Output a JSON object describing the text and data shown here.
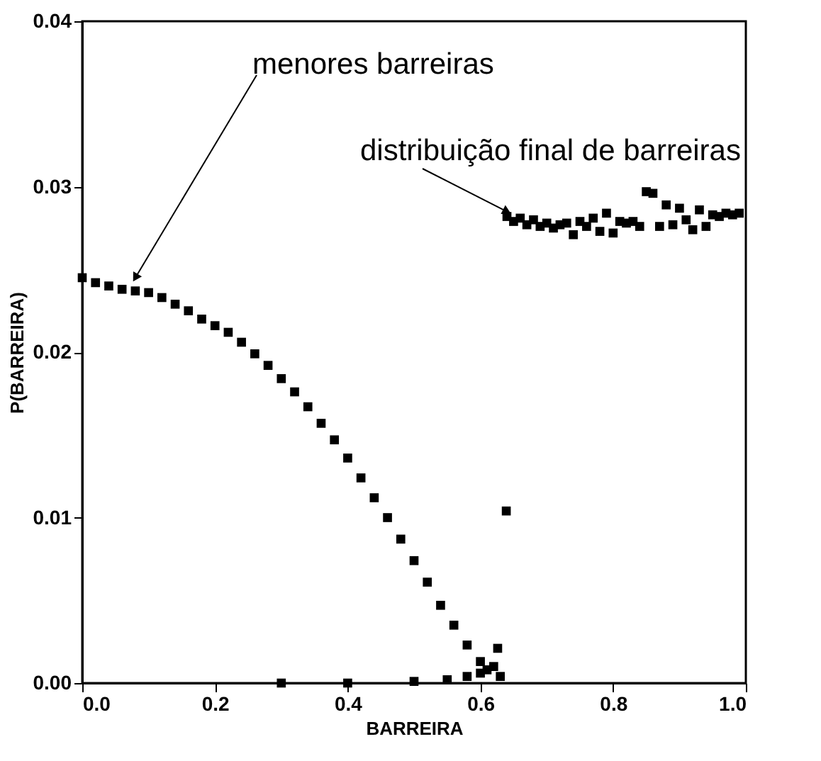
{
  "chart_data": {
    "type": "scatter",
    "xlabel": "BARREIRA",
    "ylabel": "P(BARREIRA)",
    "marker": "square",
    "grid": false,
    "legend": false,
    "xlim": [
      0,
      1
    ],
    "ylim": [
      0,
      0.04
    ],
    "xticks": [
      {
        "value": 0,
        "label": "0.0"
      },
      {
        "value": 0.2,
        "label": "0.2"
      },
      {
        "value": 0.4,
        "label": "0.4"
      },
      {
        "value": 0.6,
        "label": "0.6"
      },
      {
        "value": 0.8,
        "label": "0.8"
      },
      {
        "value": 1,
        "label": "1.0"
      }
    ],
    "yticks": [
      {
        "value": 0,
        "label": "0.00"
      },
      {
        "value": 0.01,
        "label": "0.01"
      },
      {
        "value": 0.02,
        "label": "0.02"
      },
      {
        "value": 0.03,
        "label": "0.03"
      },
      {
        "value": 0.04,
        "label": "0.04"
      }
    ],
    "series": [
      {
        "color": "#000000",
        "x": [
          0,
          0.02,
          0.04,
          0.06,
          0.08,
          0.1,
          0.12,
          0.14,
          0.16,
          0.18,
          0.2,
          0.22,
          0.24,
          0.26,
          0.28,
          0.3,
          0.32,
          0.34,
          0.36,
          0.38,
          0.4,
          0.42,
          0.44,
          0.46,
          0.48,
          0.5,
          0.52,
          0.54,
          0.56,
          0.58,
          0.6,
          0.62,
          0.626,
          0.639
        ],
        "values": [
          0.0245,
          0.0242,
          0.024,
          0.0238,
          0.0237,
          0.0236,
          0.0233,
          0.0229,
          0.0225,
          0.022,
          0.0216,
          0.0212,
          0.0206,
          0.0199,
          0.0192,
          0.0184,
          0.0176,
          0.0167,
          0.0157,
          0.0147,
          0.0136,
          0.0124,
          0.0112,
          0.01,
          0.0087,
          0.0074,
          0.0061,
          0.0047,
          0.0035,
          0.0023,
          0.0013,
          null,
          0.0021,
          0.0104
        ]
      },
      {
        "color": "#000000",
        "x": [
          0.64,
          0.65,
          0.66,
          0.67,
          0.68,
          0.69,
          0.7,
          0.71,
          0.72,
          0.73,
          0.74,
          0.75,
          0.76,
          0.77,
          0.78,
          0.79,
          0.8,
          0.81,
          0.82,
          0.83,
          0.84,
          0.85,
          0.86,
          0.87,
          0.88,
          0.89,
          0.9,
          0.91,
          0.92,
          0.93,
          0.94,
          0.95,
          0.96,
          0.97,
          0.98,
          0.99
        ],
        "values": [
          0.0282,
          0.0279,
          0.0281,
          0.0277,
          0.028,
          0.0276,
          0.0278,
          0.0275,
          0.0277,
          0.0278,
          0.0271,
          0.0279,
          0.0276,
          0.0281,
          0.0273,
          0.0284,
          0.0272,
          0.0279,
          0.0278,
          0.0279,
          0.0276,
          0.0297,
          0.0296,
          0.0276,
          0.0289,
          0.0277,
          0.0287,
          0.028,
          0.0274,
          0.0286,
          0.0276,
          0.0283,
          0.0282,
          0.0284,
          0.0283,
          0.0284
        ]
      },
      {
        "color": "#000000",
        "x": [
          0.3,
          0.4,
          0.5,
          0.55,
          0.58,
          0.6,
          0.61,
          0.62,
          0.63
        ],
        "values": [
          0,
          0,
          0.0001,
          0.0002,
          0.0004,
          0.0006,
          0.0008,
          0.001,
          0.0004
        ]
      }
    ],
    "annotations": [
      {
        "text": "menores barreiras",
        "x": 0.08,
        "y": 0.0245
      },
      {
        "text": "distribuição final de barreiras",
        "x": 0.64,
        "y": 0.0285
      }
    ]
  }
}
